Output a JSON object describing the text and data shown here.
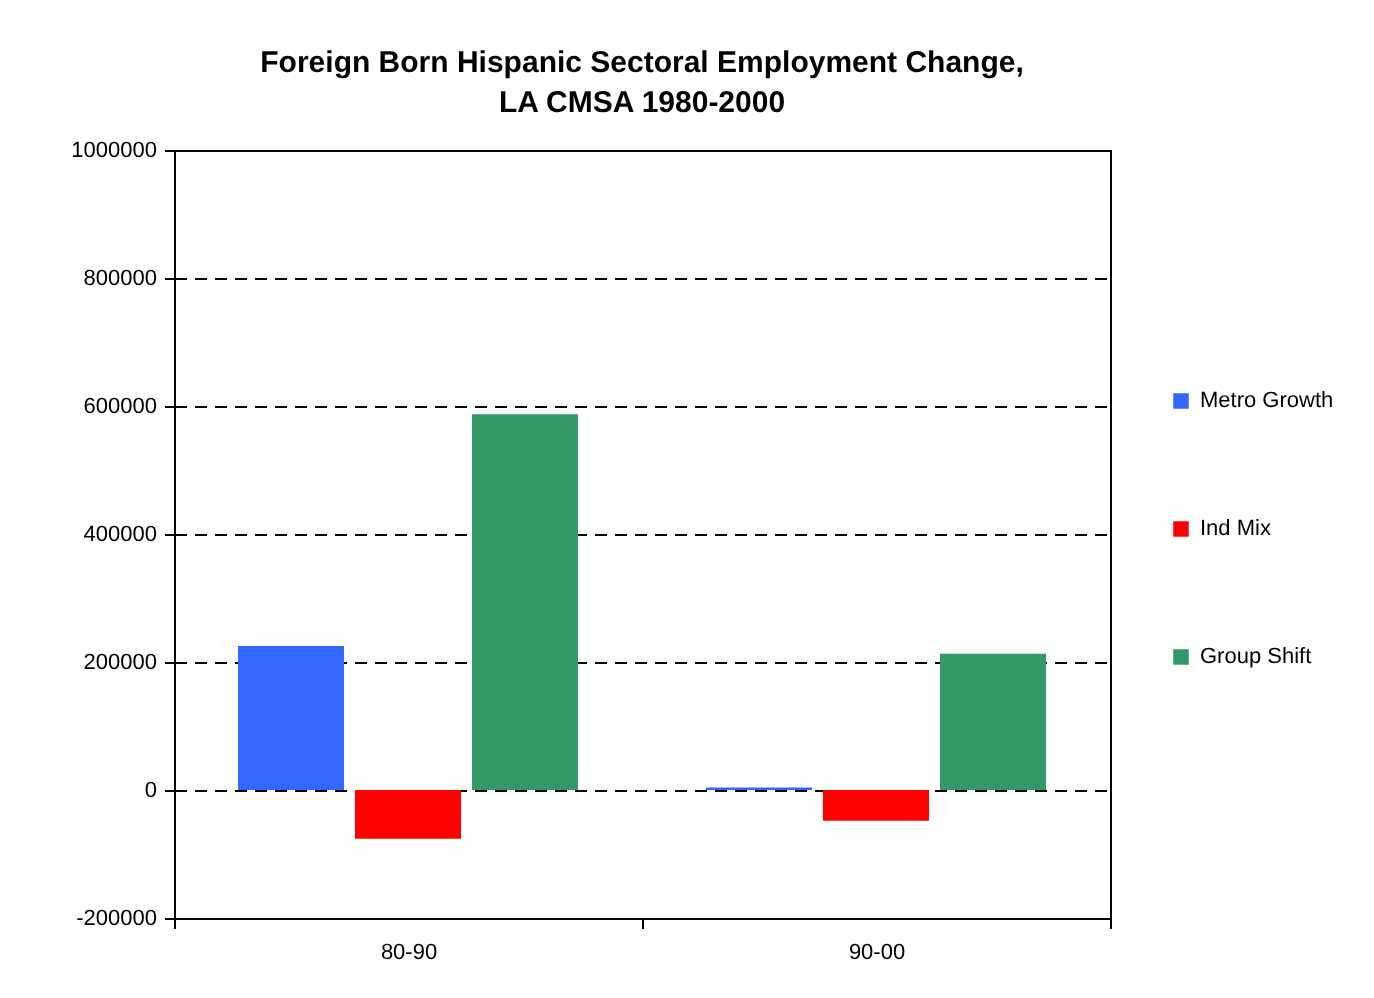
{
  "chart_data": {
    "type": "bar",
    "title": "Foreign Born Hispanic Sectoral Employment Change, LA CMSA 1980-2000",
    "categories": [
      "80-90",
      "90-00"
    ],
    "series": [
      {
        "name": "Metro Growth",
        "color": "#3366ff",
        "values": [
          225000,
          4000
        ]
      },
      {
        "name": "Ind Mix",
        "color": "#ff0000",
        "values": [
          -76000,
          -48000
        ]
      },
      {
        "name": "Group Shift",
        "color": "#339966",
        "values": [
          587000,
          213000
        ]
      }
    ],
    "ylim": [
      -200000,
      1000000
    ],
    "yticks": [
      -200000,
      0,
      200000,
      400000,
      600000,
      800000,
      1000000
    ],
    "grid": "y",
    "legend": "right"
  }
}
